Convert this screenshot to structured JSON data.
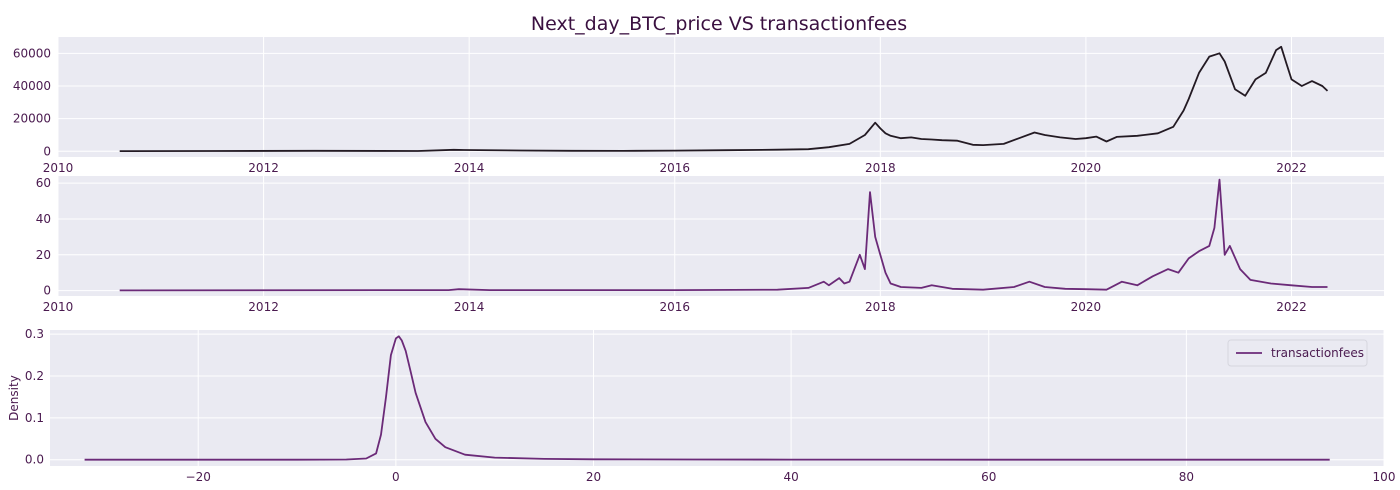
{
  "chart_data": [
    {
      "type": "line",
      "title": "Next_day_BTC_price VS transactionfees",
      "xlabel": "",
      "ylabel": "",
      "x_ticks": [
        "2010",
        "2012",
        "2014",
        "2016",
        "2018",
        "2020",
        "2022"
      ],
      "y_ticks": [
        "0",
        "20000",
        "40000",
        "60000"
      ],
      "xlim": [
        2010.0,
        2022.9
      ],
      "ylim": [
        -3500,
        70000
      ],
      "grid": true,
      "series": [
        {
          "color": "#231a23",
          "x": [
            2010.6,
            2011.5,
            2012.5,
            2013.5,
            2013.85,
            2013.95,
            2014.1,
            2014.5,
            2015.0,
            2015.5,
            2016.0,
            2016.5,
            2017.0,
            2017.3,
            2017.5,
            2017.7,
            2017.85,
            2017.95,
            2018.0,
            2018.05,
            2018.1,
            2018.2,
            2018.3,
            2018.4,
            2018.5,
            2018.6,
            2018.75,
            2018.9,
            2019.0,
            2019.2,
            2019.35,
            2019.5,
            2019.6,
            2019.75,
            2019.9,
            2020.0,
            2020.1,
            2020.2,
            2020.3,
            2020.5,
            2020.7,
            2020.85,
            2020.95,
            2021.0,
            2021.1,
            2021.2,
            2021.3,
            2021.35,
            2021.45,
            2021.55,
            2021.65,
            2021.75,
            2021.85,
            2021.9,
            2021.95,
            2022.0,
            2022.1,
            2022.2,
            2022.3,
            2022.35
          ],
          "y": [
            100,
            200,
            300,
            200,
            900,
            800,
            700,
            500,
            300,
            250,
            400,
            650,
            1000,
            1300,
            2500,
            4500,
            10000,
            17500,
            14000,
            11000,
            9500,
            8000,
            8500,
            7500,
            7200,
            6800,
            6500,
            4000,
            3800,
            4500,
            8000,
            11500,
            10000,
            8500,
            7500,
            8000,
            9000,
            6000,
            8800,
            9500,
            11000,
            15000,
            25000,
            32000,
            48000,
            58000,
            60000,
            55000,
            38000,
            34000,
            44000,
            48000,
            62000,
            64000,
            54000,
            44000,
            40000,
            43000,
            40000,
            37000
          ]
        },
        {
          "color": "#6b2a78",
          "x": [
            2010.6,
            2013.8,
            2013.9,
            2014.2,
            2016.0,
            2017.0,
            2017.3,
            2017.45,
            2017.5,
            2017.6,
            2017.65,
            2017.7,
            2017.8,
            2017.85,
            2017.9,
            2017.95,
            2018.0,
            2018.05,
            2018.1,
            2018.2,
            2018.4,
            2018.5,
            2018.7,
            2019.0,
            2019.3,
            2019.45,
            2019.6,
            2019.8,
            2020.0,
            2020.2,
            2020.35,
            2020.5,
            2020.65,
            2020.8,
            2020.9,
            2021.0,
            2021.1,
            2021.2,
            2021.25,
            2021.3,
            2021.35,
            2021.4,
            2021.5,
            2021.6,
            2021.8,
            2022.0,
            2022.2,
            2022.35
          ],
          "y": [
            0.1,
            0.3,
            0.8,
            0.3,
            0.3,
            0.5,
            1.5,
            5,
            3,
            7,
            4,
            5,
            20,
            12,
            55,
            30,
            20,
            10,
            4,
            2,
            1.5,
            3,
            1,
            0.5,
            2,
            5,
            2,
            1,
            0.8,
            0.5,
            5,
            3,
            8,
            12,
            10,
            18,
            22,
            25,
            35,
            62,
            20,
            25,
            12,
            6,
            4,
            3,
            2,
            2
          ]
        }
      ]
    },
    {
      "type": "line",
      "title": "",
      "xlabel": "",
      "ylabel": "Density",
      "x_ticks": [
        "−20",
        "0",
        "20",
        "40",
        "60",
        "80",
        "100"
      ],
      "y_ticks": [
        "0.0",
        "0.1",
        "0.2",
        "0.3"
      ],
      "xlim": [
        -35,
        100
      ],
      "ylim": [
        -0.015,
        0.31
      ],
      "grid": true,
      "legend_position": "top-right",
      "series": [
        {
          "name": "transactionfees",
          "color": "#6b2a78",
          "x": [
            -31.5,
            -10,
            -5,
            -3,
            -2,
            -1.5,
            -1,
            -0.5,
            0,
            0.3,
            0.6,
            1,
            1.5,
            2,
            3,
            4,
            5,
            7,
            10,
            15,
            20,
            30,
            40,
            60,
            80,
            94.5
          ],
          "y": [
            0,
            0,
            0.0005,
            0.003,
            0.015,
            0.06,
            0.15,
            0.25,
            0.29,
            0.295,
            0.285,
            0.26,
            0.21,
            0.16,
            0.09,
            0.05,
            0.03,
            0.012,
            0.005,
            0.002,
            0.001,
            0.0005,
            0.0003,
            0.0001,
            5e-05,
            0
          ]
        }
      ]
    }
  ]
}
